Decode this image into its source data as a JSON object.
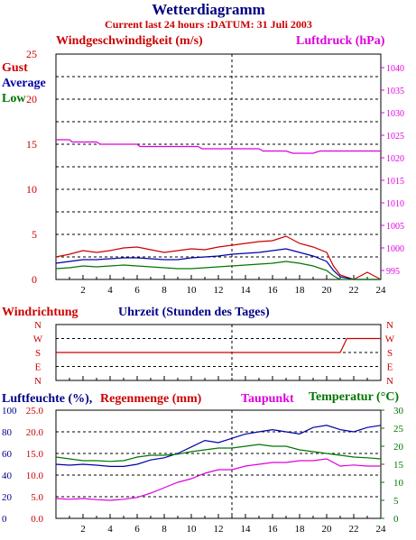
{
  "title": "Wetterdiagramm",
  "subtitle": "Current last 24 hours :DATUM: 31 Juli 2003",
  "colors": {
    "red": "#cc0000",
    "blue": "#0000aa",
    "green": "#007700",
    "magenta": "#dd00dd",
    "navy": "#000088",
    "title": "#000080"
  },
  "panels": {
    "wind": {
      "left_label": "Windgeschwindigkeit (m/s)",
      "right_label": "Luftdruck (hPa)",
      "legend": [
        "Gust",
        "Average",
        "Low"
      ]
    },
    "direction": {
      "left_label": "Windrichtung",
      "center_label": "Uhrzeit (Stunden des Tages)"
    },
    "humidity": {
      "label_humidity": "Luftfeuchte (%),",
      "label_rain": "Regenmenge (mm)",
      "label_dew": "Taupunkt",
      "label_temp": "Temperatur (°C)"
    }
  },
  "chart_data": [
    {
      "type": "line",
      "name": "wind",
      "x_ticks": [
        2,
        4,
        6,
        8,
        10,
        12,
        14,
        16,
        18,
        20,
        22,
        24
      ],
      "xlim": [
        0,
        24
      ],
      "ylim": [
        0,
        25
      ],
      "y_ticks": [
        0,
        5,
        10,
        15,
        20,
        25
      ],
      "y2lim": [
        993,
        1043
      ],
      "y2_ticks": [
        995,
        1000,
        1005,
        1010,
        1015,
        1020,
        1025,
        1030,
        1035,
        1040
      ],
      "grid": true,
      "series": [
        {
          "name": "Gust",
          "color": "red",
          "axis": "left",
          "x": [
            0,
            1,
            2,
            3,
            4,
            5,
            6,
            7,
            8,
            9,
            10,
            11,
            12,
            13,
            14,
            15,
            16,
            17,
            18,
            19,
            20,
            20.5,
            21,
            22,
            23,
            24
          ],
          "y": [
            2.5,
            2.8,
            3.2,
            3.0,
            3.2,
            3.5,
            3.6,
            3.3,
            3.0,
            3.2,
            3.4,
            3.3,
            3.6,
            3.8,
            4.0,
            4.2,
            4.3,
            4.8,
            4.0,
            3.6,
            3.0,
            1.5,
            0.5,
            0,
            0.8,
            0
          ]
        },
        {
          "name": "Average",
          "color": "blue",
          "axis": "left",
          "x": [
            0,
            1,
            2,
            3,
            4,
            5,
            6,
            7,
            8,
            9,
            10,
            11,
            12,
            13,
            14,
            15,
            16,
            17,
            18,
            19,
            20,
            20.5,
            21,
            22,
            23,
            24
          ],
          "y": [
            1.8,
            2.0,
            2.2,
            2.2,
            2.3,
            2.4,
            2.4,
            2.3,
            2.2,
            2.2,
            2.4,
            2.5,
            2.6,
            2.8,
            2.9,
            3.0,
            3.2,
            3.4,
            3.0,
            2.6,
            2.0,
            1.0,
            0.3,
            0,
            0,
            0
          ]
        },
        {
          "name": "Low",
          "color": "green",
          "axis": "left",
          "x": [
            0,
            1,
            2,
            3,
            4,
            5,
            6,
            7,
            8,
            9,
            10,
            11,
            12,
            13,
            14,
            15,
            16,
            17,
            18,
            19,
            20,
            20.5,
            21,
            22,
            23,
            24
          ],
          "y": [
            1.2,
            1.3,
            1.5,
            1.4,
            1.5,
            1.6,
            1.5,
            1.4,
            1.3,
            1.2,
            1.2,
            1.3,
            1.4,
            1.5,
            1.6,
            1.7,
            1.8,
            2.0,
            1.8,
            1.5,
            1.0,
            0.4,
            0,
            0,
            0,
            0
          ]
        },
        {
          "name": "Luftdruck",
          "color": "magenta",
          "axis": "right",
          "x": [
            0,
            1,
            1.2,
            3,
            3.3,
            6,
            6.2,
            10.5,
            10.8,
            15,
            15.3,
            17,
            17.5,
            19,
            19.5,
            24
          ],
          "y": [
            1024,
            1024,
            1023.5,
            1023.5,
            1023,
            1023,
            1022.5,
            1022.5,
            1022,
            1022,
            1021.5,
            1021.5,
            1021,
            1021,
            1021.5,
            1021.5
          ]
        }
      ]
    },
    {
      "type": "line",
      "name": "direction",
      "y_categories": [
        "N",
        "W",
        "S",
        "E",
        "N"
      ],
      "xlim": [
        0,
        24
      ],
      "series": [
        {
          "name": "Windrichtung",
          "color": "red",
          "x": [
            0,
            2,
            4,
            6,
            8,
            10,
            12,
            14,
            16,
            18,
            20,
            21,
            21.5,
            24
          ],
          "y": [
            "S",
            "S",
            "S",
            "S",
            "S",
            "S",
            "S",
            "S",
            "S",
            "S",
            "S",
            "S",
            "W",
            "W"
          ]
        }
      ]
    },
    {
      "type": "line",
      "name": "humidity",
      "xlim": [
        0,
        24
      ],
      "y_ticks_humidity": [
        0,
        20,
        40,
        60,
        80,
        100
      ],
      "y_ticks_rain": [
        0.0,
        5.0,
        10.0,
        15.0,
        20.0,
        25.0
      ],
      "ylim": [
        0,
        25
      ],
      "y2lim": [
        0,
        30
      ],
      "y2_ticks": [
        0,
        5,
        10,
        15,
        20,
        25,
        30
      ],
      "grid": true,
      "series": [
        {
          "name": "Luftfeuchte",
          "color": "blue",
          "axis": "left",
          "x": [
            0,
            1,
            2,
            3,
            4,
            5,
            6,
            7,
            8,
            9,
            10,
            11,
            12,
            13,
            14,
            15,
            16,
            17,
            18,
            19,
            20,
            21,
            22,
            23,
            24
          ],
          "y": [
            12.5,
            12.3,
            12.5,
            12.3,
            12.0,
            12.0,
            12.5,
            13.5,
            14.0,
            15.0,
            16.5,
            18.0,
            17.5,
            18.5,
            19.5,
            20.0,
            20.5,
            20.0,
            19.5,
            21.0,
            21.5,
            20.5,
            20.0,
            21.0,
            21.5
          ]
        },
        {
          "name": "Taupunkt",
          "color": "magenta",
          "axis": "right",
          "x": [
            0,
            1,
            2,
            3,
            4,
            5,
            6,
            7,
            8,
            9,
            10,
            11,
            12,
            13,
            14,
            15,
            16,
            17,
            18,
            19,
            20,
            21,
            22,
            23,
            24
          ],
          "y": [
            5.5,
            5.3,
            5.5,
            5.2,
            5.0,
            5.3,
            5.8,
            7.0,
            8.5,
            10.0,
            11.0,
            12.5,
            13.5,
            13.5,
            14.5,
            15.0,
            15.5,
            15.5,
            16.0,
            16.0,
            16.5,
            14.5,
            14.8,
            14.5,
            14.5
          ]
        },
        {
          "name": "Temperatur",
          "color": "green",
          "axis": "right",
          "x": [
            0,
            1,
            2,
            3,
            4,
            5,
            6,
            7,
            8,
            9,
            10,
            11,
            12,
            13,
            14,
            15,
            16,
            17,
            18,
            19,
            20,
            21,
            22,
            23,
            24
          ],
          "y": [
            17.0,
            16.5,
            16.0,
            16.0,
            15.8,
            16.0,
            17.0,
            17.5,
            17.5,
            17.8,
            18.5,
            19.0,
            19.5,
            19.5,
            20.0,
            20.5,
            20.0,
            20.0,
            19.0,
            18.5,
            18.0,
            17.5,
            17.0,
            16.8,
            16.5
          ]
        }
      ]
    }
  ]
}
